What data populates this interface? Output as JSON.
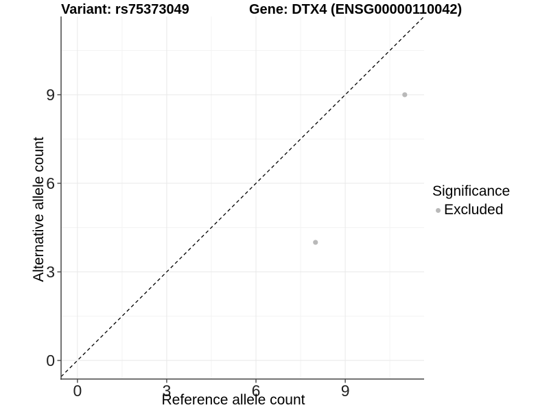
{
  "chart_data": {
    "type": "scatter",
    "titles": {
      "left": "Variant: rs75373049",
      "right": "Gene: DTX4 (ENSG00000110042)"
    },
    "xlabel": "Reference allele count",
    "ylabel": "Alternative allele count",
    "x_ticks": [
      0,
      3,
      6,
      9
    ],
    "y_ticks": [
      0,
      3,
      6,
      9
    ],
    "x_minor_ticks": [
      1.5,
      4.5,
      7.5,
      10.5
    ],
    "y_minor_ticks": [
      1.5,
      4.5,
      7.5,
      10.5
    ],
    "xlim": [
      -0.55,
      11.65
    ],
    "ylim": [
      -0.63,
      11.65
    ],
    "series": [
      {
        "name": "Excluded",
        "color": "#b9b9b9",
        "points": [
          {
            "x": 8,
            "y": 4
          },
          {
            "x": 11,
            "y": 9
          }
        ]
      }
    ],
    "reference_line": {
      "type": "identity",
      "style": "dashed",
      "color": "#000000"
    },
    "legend": {
      "position": "right",
      "title": "Significance",
      "items": [
        {
          "label": "Excluded",
          "color": "#b9b9b9"
        }
      ]
    },
    "grid": {
      "major_color": "#e8e8e8",
      "minor_color": "#f3f3f3",
      "background": "#ffffff"
    },
    "axis": {
      "line_color": "#454545",
      "tick_label_color": "#212121"
    }
  }
}
